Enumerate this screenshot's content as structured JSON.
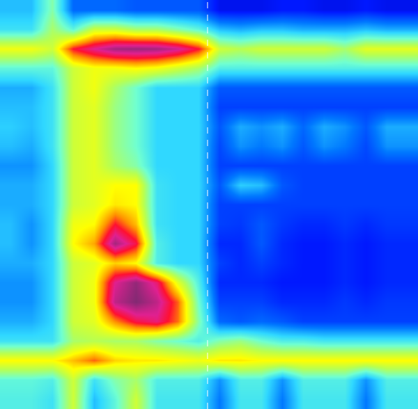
{
  "chart_data": {
    "type": "heatmap",
    "tick_labels": false,
    "zlim": [
      0,
      100
    ],
    "vline": 9.43,
    "z": [
      [
        30,
        30,
        45,
        20,
        20,
        20,
        18,
        18,
        18,
        18,
        8,
        8,
        8,
        10,
        10,
        8,
        8,
        10,
        8,
        8
      ],
      [
        35,
        35,
        50,
        40,
        55,
        55,
        50,
        50,
        45,
        40,
        30,
        28,
        30,
        30,
        28,
        28,
        28,
        30,
        28,
        28
      ],
      [
        60,
        60,
        55,
        80,
        88,
        95,
        96,
        95,
        90,
        80,
        55,
        52,
        55,
        55,
        55,
        55,
        50,
        58,
        58,
        58
      ],
      [
        40,
        40,
        40,
        55,
        60,
        60,
        62,
        60,
        55,
        50,
        38,
        38,
        38,
        38,
        38,
        38,
        38,
        38,
        38,
        38
      ],
      [
        28,
        28,
        35,
        55,
        60,
        50,
        42,
        33,
        33,
        33,
        18,
        18,
        18,
        18,
        18,
        18,
        18,
        18,
        18,
        18
      ],
      [
        30,
        30,
        35,
        55,
        58,
        48,
        42,
        33,
        33,
        33,
        15,
        15,
        15,
        15,
        15,
        15,
        15,
        15,
        15,
        15
      ],
      [
        32,
        30,
        35,
        55,
        58,
        48,
        42,
        33,
        33,
        33,
        18,
        28,
        25,
        28,
        20,
        28,
        25,
        18,
        28,
        28
      ],
      [
        30,
        28,
        35,
        55,
        58,
        48,
        42,
        33,
        33,
        33,
        16,
        25,
        22,
        25,
        18,
        25,
        22,
        16,
        25,
        25
      ],
      [
        25,
        25,
        33,
        55,
        58,
        50,
        45,
        33,
        33,
        33,
        15,
        15,
        15,
        15,
        15,
        15,
        15,
        15,
        15,
        15
      ],
      [
        28,
        28,
        33,
        55,
        58,
        62,
        62,
        35,
        33,
        33,
        18,
        32,
        30,
        18,
        15,
        15,
        15,
        15,
        15,
        15
      ],
      [
        28,
        28,
        33,
        55,
        58,
        64,
        62,
        35,
        33,
        33,
        15,
        15,
        15,
        15,
        15,
        15,
        15,
        15,
        15,
        15
      ],
      [
        30,
        25,
        33,
        60,
        62,
        80,
        68,
        35,
        33,
        33,
        15,
        14,
        18,
        14,
        12,
        12,
        14,
        12,
        14,
        14
      ],
      [
        30,
        25,
        33,
        62,
        70,
        95,
        82,
        38,
        33,
        33,
        12,
        12,
        18,
        12,
        10,
        10,
        12,
        10,
        12,
        12
      ],
      [
        28,
        28,
        33,
        55,
        58,
        66,
        62,
        38,
        33,
        33,
        15,
        12,
        15,
        12,
        10,
        10,
        12,
        10,
        12,
        12
      ],
      [
        25,
        25,
        33,
        55,
        60,
        88,
        97,
        85,
        58,
        38,
        12,
        12,
        12,
        10,
        10,
        10,
        12,
        10,
        12,
        12
      ],
      [
        25,
        25,
        33,
        55,
        60,
        92,
        99,
        92,
        75,
        42,
        15,
        15,
        15,
        12,
        12,
        12,
        14,
        12,
        14,
        14
      ],
      [
        28,
        28,
        33,
        55,
        58,
        72,
        82,
        86,
        74,
        45,
        20,
        18,
        20,
        18,
        15,
        15,
        15,
        15,
        15,
        15
      ],
      [
        35,
        35,
        35,
        50,
        52,
        50,
        50,
        45,
        42,
        38,
        45,
        48,
        42,
        38,
        38,
        36,
        36,
        36,
        36,
        36
      ],
      [
        62,
        62,
        62,
        68,
        75,
        66,
        64,
        64,
        62,
        60,
        64,
        64,
        62,
        62,
        62,
        62,
        62,
        62,
        62,
        62
      ],
      [
        40,
        40,
        38,
        55,
        35,
        45,
        50,
        38,
        38,
        38,
        25,
        38,
        38,
        25,
        38,
        38,
        38,
        25,
        38,
        38
      ],
      [
        38,
        38,
        35,
        55,
        30,
        40,
        55,
        36,
        36,
        36,
        22,
        36,
        36,
        22,
        36,
        36,
        36,
        22,
        36,
        36
      ]
    ]
  }
}
